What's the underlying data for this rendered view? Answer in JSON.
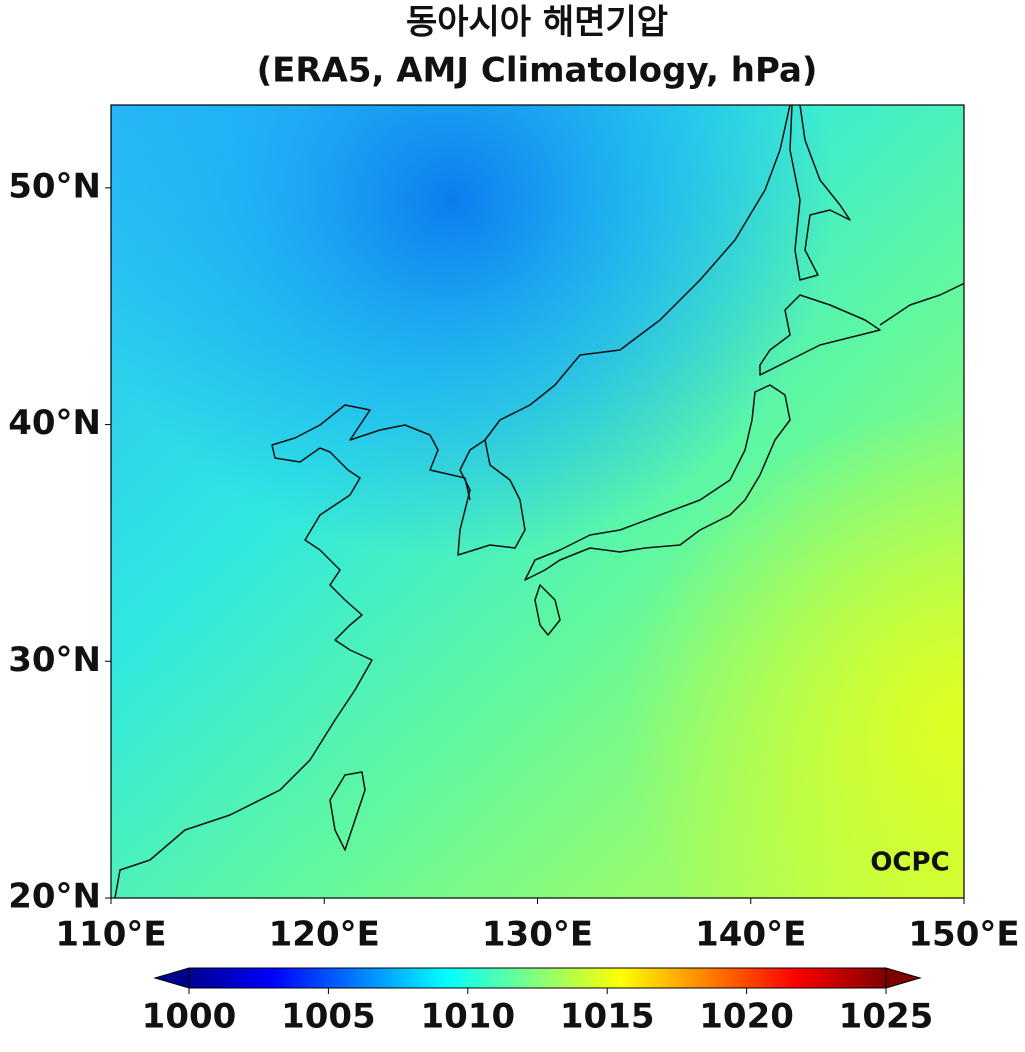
{
  "chart_data": {
    "type": "map",
    "title": "동아시아 해면기압",
    "subtitle": "(ERA5, AMJ Climatology, hPa)",
    "xlim": [
      110,
      150
    ],
    "ylim": [
      20,
      53.5
    ],
    "xticks": [
      {
        "value": 110,
        "label": "110°E"
      },
      {
        "value": 120,
        "label": "120°E"
      },
      {
        "value": 130,
        "label": "130°E"
      },
      {
        "value": 140,
        "label": "140°E"
      },
      {
        "value": 150,
        "label": "150°E"
      }
    ],
    "yticks": [
      {
        "value": 20,
        "label": "20°N"
      },
      {
        "value": 30,
        "label": "30°N"
      },
      {
        "value": 40,
        "label": "40°N"
      },
      {
        "value": 50,
        "label": "50°N"
      }
    ],
    "colorbar": {
      "clim": [
        1000,
        1025
      ],
      "ticks": [
        1000,
        1005,
        1010,
        1015,
        1020,
        1025
      ]
    },
    "logo": "OCPC"
  }
}
